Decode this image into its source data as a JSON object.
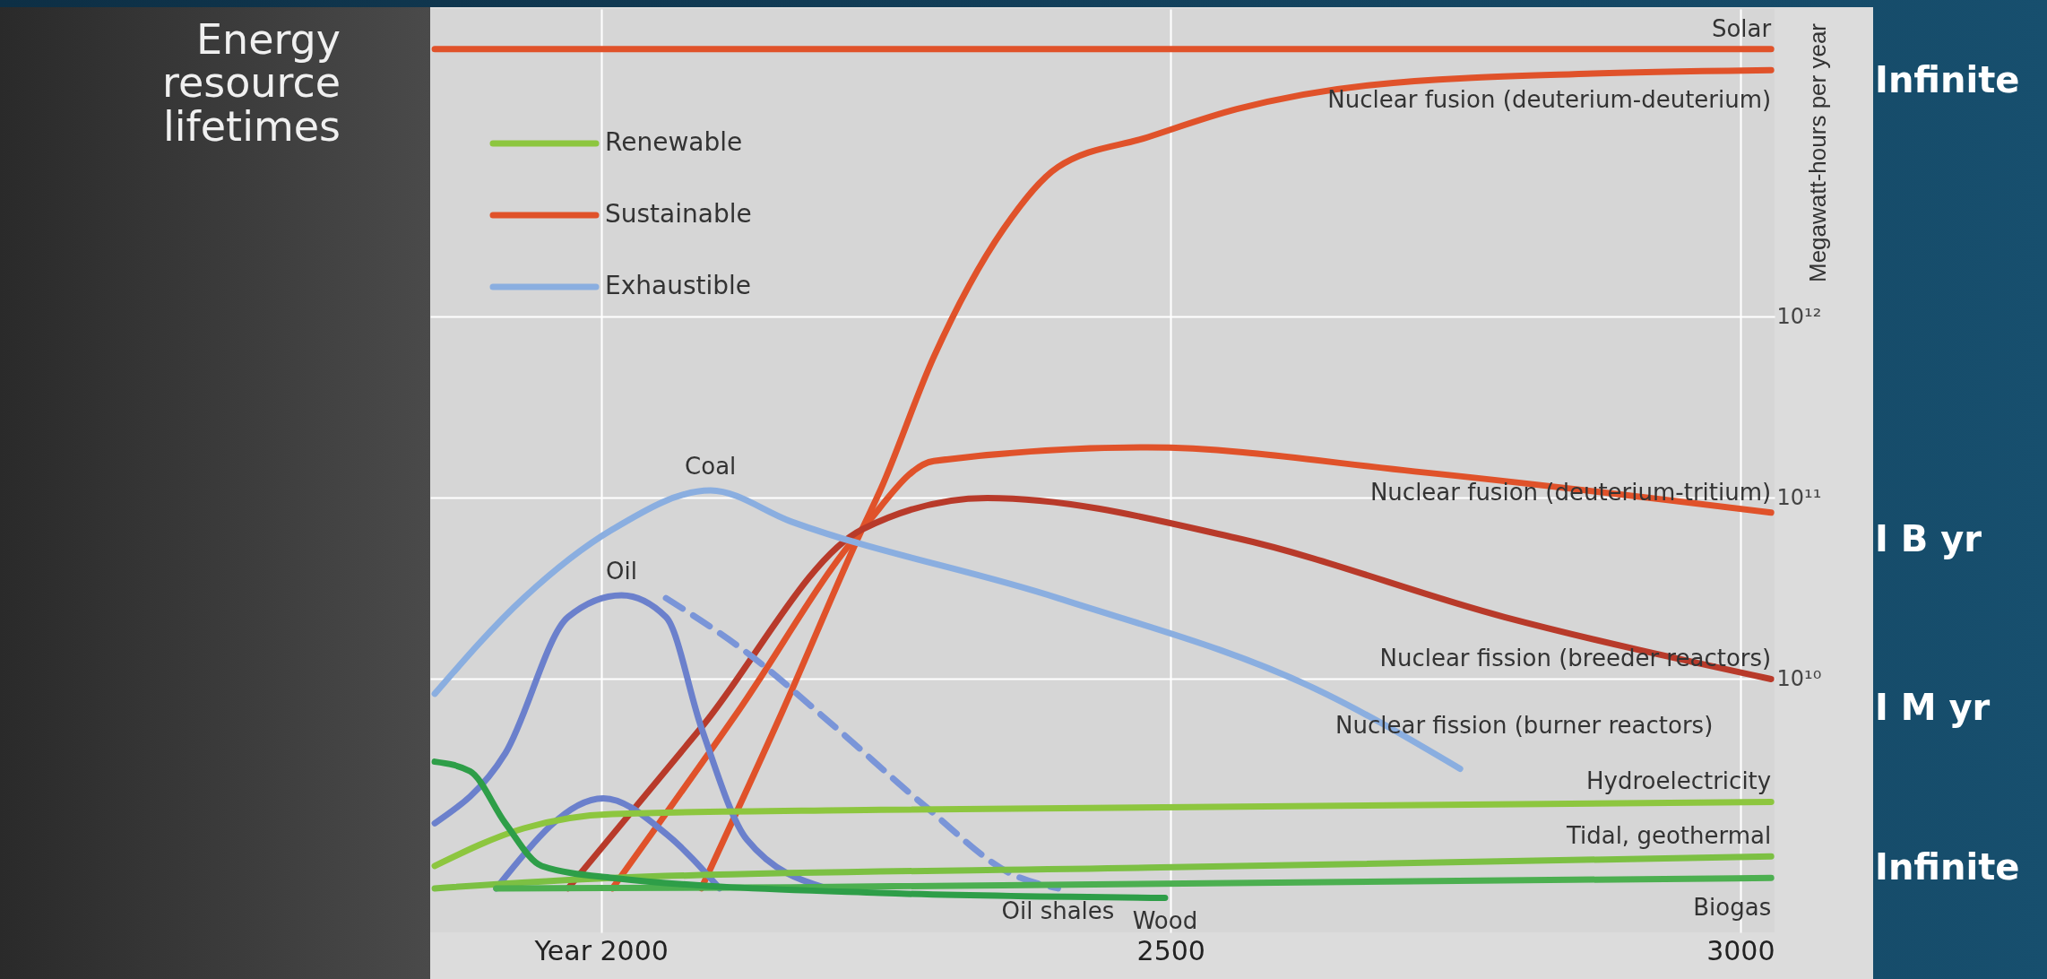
{
  "chart_data": {
    "type": "line",
    "title": "Energy resource lifetimes",
    "ylabel": "Megawatt-hours per year",
    "log": "y",
    "grid": true,
    "xlim": [
      1850,
      3030
    ],
    "xticks": [
      {
        "value": 2000,
        "label": "Year 2000"
      },
      2500,
      3000
    ],
    "ylim": [
      400000000.0,
      50000000000000.0
    ],
    "yticks": [
      {
        "value": 10000000000.0,
        "label": "10¹⁰"
      },
      {
        "value": 100000000000.0,
        "label": "10¹¹"
      },
      {
        "value": 1000000000000.0,
        "label": "10¹²"
      }
    ],
    "series": [
      {
        "name": "Solar",
        "color": "#e0522a",
        "x": [
          1854,
          3027
        ],
        "values": [
          30000000000000.0,
          30000000000000.0
        ]
      },
      {
        "name": "Nuclear fusion (deuterium-deuterium)",
        "color": "#e0522a",
        "x": [
          2088,
          2159,
          2229,
          2245,
          2292,
          2354,
          2401,
          2480,
          2558,
          2675,
          2871,
          3027
        ],
        "values": [
          700000000.0,
          6600000000.0,
          67000000000.0,
          110000000000.0,
          600000000000.0,
          3100000000000.0,
          6700000000000.0,
          9800000000000.0,
          14000000000000.0,
          19000000000000.0,
          22000000000000.0,
          23000000000000.0
        ]
      },
      {
        "name": "Nuclear fusion (deuterium-tritium)",
        "color": "#e0522a",
        "x": [
          2010,
          2120,
          2229,
          2292,
          2480,
          2714,
          3027
        ],
        "values": [
          700000000.0,
          6600000000.0,
          67000000000.0,
          160000000000.0,
          190000000000.0,
          140000000000.0,
          83000000000.0
        ]
      },
      {
        "name": "Nuclear fission (breeder reactors)",
        "color": "#b83a2a",
        "x": [
          1971,
          2088,
          2229,
          2339,
          2558,
          2793,
          3027
        ],
        "values": [
          700000000.0,
          5400000000.0,
          67000000000.0,
          100000000000.0,
          60000000000.0,
          22000000000.0,
          10000000000.0
        ]
      },
      {
        "name": "Coal",
        "color": "#8aaee0",
        "x": [
          1854,
          1932,
          2010,
          2096,
          2167,
          2401,
          2636,
          2754
        ],
        "values": [
          8300000000.0,
          28000000000.0,
          67000000000.0,
          110000000000.0,
          74000000000.0,
          28000000000.0,
          8300000000.0,
          3200000000.0
        ]
      },
      {
        "name": "Oil",
        "color": "#6b80cc",
        "x": [
          1854,
          1916,
          1971,
          2018,
          2057,
          2088,
          2128,
          2198
        ],
        "values": [
          1600000000.0,
          3900000000.0,
          22000000000.0,
          29000000000.0,
          22000000000.0,
          5400000000.0,
          1300000000.0,
          700000000.0
        ]
      },
      {
        "name": "Oil shales",
        "color": "#7a95d8",
        "line_style": "dashed",
        "x": [
          2057,
          2128,
          2206,
          2284,
          2362,
          2401
        ],
        "values": [
          28000000000.0,
          14000000000.0,
          5400000000.0,
          2000000000.0,
          830000000.0,
          700000000.0
        ]
      },
      {
        "color": "#6b80cc",
        "x": [
          1908,
          2002,
          2057,
          2104
        ],
        "values": [
          700000000.0,
          2200000000.0,
          1400000000.0,
          700000000.0
        ]
      },
      {
        "name": "Hydroelectricity",
        "color": "#8dc63f",
        "x": [
          1854,
          1932,
          2010,
          2245,
          3027
        ],
        "values": [
          930000000.0,
          1500000000.0,
          1800000000.0,
          1900000000.0,
          2100000000.0
        ]
      },
      {
        "name": "Tidal, geothermal",
        "color": "#7cc043",
        "x": [
          1854,
          2010,
          2480,
          3027
        ],
        "values": [
          700000000.0,
          800000000.0,
          910000000.0,
          1050000000.0
        ]
      },
      {
        "name": "Biogas",
        "color": "#4caf50",
        "x": [
          1908,
          2167,
          3027
        ],
        "values": [
          700000000.0,
          710000000.0,
          800000000.0
        ]
      },
      {
        "name": "Wood",
        "color": "#2e9e48",
        "x": [
          1854,
          1885,
          1916,
          1948,
          2010,
          2245,
          2495
        ],
        "values": [
          3500000000.0,
          3100000000.0,
          1600000000.0,
          930000000.0,
          800000000.0,
          660000000.0,
          620000000.0
        ]
      }
    ],
    "annotations": [
      "Renewable",
      "Sustainable",
      "Exhaustible",
      "Nuclear fission (burner reactors)",
      "Infinite",
      "I B yr",
      "I M yr",
      "Infinite"
    ]
  }
}
